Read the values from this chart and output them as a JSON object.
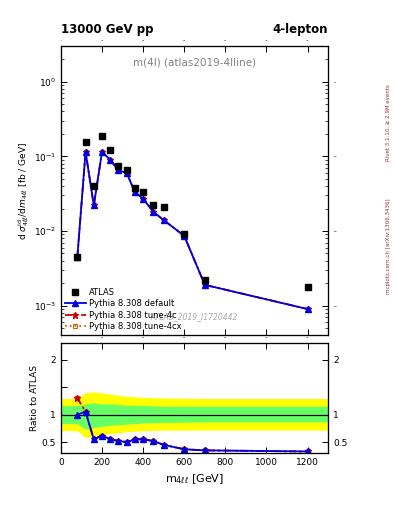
{
  "title_left": "13000 GeV pp",
  "title_right": "4-lepton",
  "plot_title": "m(4l) (atlas2019-4lline)",
  "watermark": "ATLAS_2019_I1720442",
  "right_label_top": "Rivet 3.1.10, ≥ 2.9M events",
  "right_label_bot": "mcplots.cern.ch [arXiv:1306.3436]",
  "ylabel_main": "d σʲid₄ℓℓ/dm₄ℓℓ [fb / GeV]",
  "ylabel_ratio": "Ratio to ATLAS",
  "xlabel": "m₄ℓℓℓ [GeV]",
  "xlim": [
    0,
    1300
  ],
  "ylim_main": [
    0.0004,
    3
  ],
  "ylim_ratio": [
    0.3,
    2.3
  ],
  "data_x": [
    80,
    120,
    160,
    200,
    240,
    280,
    320,
    360,
    400,
    450,
    500,
    600,
    700,
    1200
  ],
  "data_y": [
    0.0045,
    0.155,
    0.04,
    0.185,
    0.12,
    0.075,
    0.065,
    0.038,
    0.033,
    0.022,
    0.021,
    0.009,
    0.0022,
    0.0018
  ],
  "mc_x": [
    80,
    120,
    160,
    200,
    240,
    280,
    320,
    360,
    400,
    450,
    500,
    600,
    700,
    1200
  ],
  "mc_default_y": [
    0.0045,
    0.115,
    0.022,
    0.115,
    0.09,
    0.065,
    0.06,
    0.033,
    0.027,
    0.018,
    0.014,
    0.0086,
    0.0019,
    0.0009
  ],
  "mc_4c_y": [
    0.0045,
    0.115,
    0.022,
    0.115,
    0.09,
    0.065,
    0.06,
    0.033,
    0.027,
    0.018,
    0.014,
    0.0086,
    0.0019,
    0.0009
  ],
  "mc_4cx_y": [
    0.0045,
    0.115,
    0.022,
    0.115,
    0.09,
    0.065,
    0.06,
    0.033,
    0.027,
    0.018,
    0.014,
    0.0086,
    0.0019,
    0.0009
  ],
  "color_default": "#0000dd",
  "color_4c": "#cc0000",
  "color_4cx": "#cc6600",
  "legend_labels": [
    "ATLAS",
    "Pythia 8.308 default",
    "Pythia 8.308 tune-4c",
    "Pythia 8.308 tune-4cx"
  ],
  "ratio_x": [
    80,
    120,
    160,
    200,
    240,
    280,
    320,
    360,
    400,
    450,
    500,
    600,
    700,
    1200
  ],
  "ratio_default": [
    1.0,
    1.05,
    0.55,
    0.62,
    0.55,
    0.52,
    0.5,
    0.55,
    0.55,
    0.52,
    0.45,
    0.37,
    0.35,
    0.33
  ],
  "ratio_4c": [
    1.3,
    1.05,
    0.55,
    0.62,
    0.55,
    0.52,
    0.5,
    0.55,
    0.55,
    0.52,
    0.45,
    0.37,
    0.35,
    0.33
  ],
  "ratio_4cx": [
    1.3,
    1.05,
    0.55,
    0.62,
    0.55,
    0.52,
    0.5,
    0.55,
    0.55,
    0.52,
    0.45,
    0.37,
    0.35,
    0.33
  ],
  "band_x": [
    0,
    80,
    120,
    160,
    200,
    240,
    280,
    320,
    400,
    500,
    700,
    1000,
    1300
  ],
  "green_lo": [
    0.85,
    0.85,
    0.75,
    0.78,
    0.8,
    0.82,
    0.83,
    0.84,
    0.86,
    0.87,
    0.88,
    0.88,
    0.88
  ],
  "green_hi": [
    1.15,
    1.15,
    1.18,
    1.2,
    1.18,
    1.18,
    1.17,
    1.16,
    1.15,
    1.14,
    1.14,
    1.14,
    1.14
  ],
  "yellow_lo": [
    0.72,
    0.72,
    0.6,
    0.62,
    0.65,
    0.67,
    0.68,
    0.7,
    0.72,
    0.73,
    0.73,
    0.73,
    0.73
  ],
  "yellow_hi": [
    1.28,
    1.28,
    1.38,
    1.4,
    1.38,
    1.36,
    1.34,
    1.32,
    1.3,
    1.29,
    1.28,
    1.28,
    1.28
  ]
}
